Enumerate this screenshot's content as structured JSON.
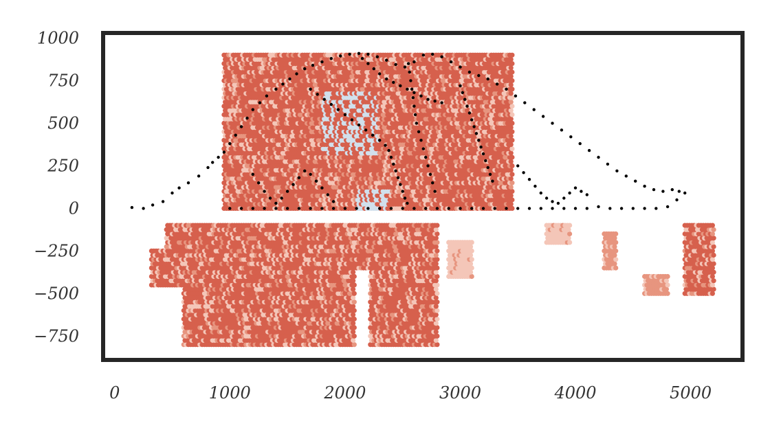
{
  "chart_data": {
    "type": "scatter",
    "title": "",
    "xlabel": "",
    "ylabel": "",
    "xlim": [
      -100,
      5450
    ],
    "ylim": [
      -890,
      1030
    ],
    "x_ticks": [
      0,
      1000,
      2000,
      3000,
      4000,
      5000
    ],
    "y_ticks": [
      -750,
      -500,
      -250,
      0,
      250,
      500,
      750,
      1000
    ],
    "x_tick_labels": [
      "0",
      "1000",
      "2000",
      "3000",
      "4000",
      "5000"
    ],
    "y_tick_labels": [
      "−750",
      "−500",
      "−250",
      "0",
      "250",
      "500",
      "750",
      "1000"
    ],
    "grid": false,
    "colors": {
      "frame": "#262626",
      "tick_text": "#333333",
      "spots_dark": "#d6604d",
      "spots_mid": "#e7957f",
      "spots_light": "#f4c6b8",
      "spots_pale": "#fbe2d9",
      "spots_blue": "#d1e0ec",
      "outline_points": "#000000"
    },
    "series": [
      {
        "kind": "hex-spots",
        "hex_spacing_x": 20,
        "hex_spacing_y": 25,
        "regions": [
          {
            "x_range": [
              950,
              3450
            ],
            "y_range": [
              0,
              900
            ],
            "shade": "dark"
          },
          {
            "x_range": [
              320,
              2800
            ],
            "y_range": [
              -800,
              -100
            ],
            "shade": "dark"
          },
          {
            "x_range": [
              3750,
              3950
            ],
            "y_range": [
              -200,
              -100
            ],
            "shade": "light"
          },
          {
            "x_range": [
              4250,
              4350
            ],
            "y_range": [
              -350,
              -150
            ],
            "shade": "mid"
          },
          {
            "x_range": [
              4600,
              4800
            ],
            "y_range": [
              -500,
              -400
            ],
            "shade": "mid"
          },
          {
            "x_range": [
              4950,
              5200
            ],
            "y_range": [
              -500,
              -100
            ],
            "shade": "dark"
          },
          {
            "x_range": [
              2900,
              3100
            ],
            "y_range": [
              -400,
              -200
            ],
            "shade": "light"
          }
        ]
      },
      {
        "kind": "outline-points",
        "points": [
          [
            150,
            5
          ],
          [
            250,
            0
          ],
          [
            330,
            20
          ],
          [
            420,
            40
          ],
          [
            500,
            90
          ],
          [
            560,
            120
          ],
          [
            640,
            150
          ],
          [
            730,
            190
          ],
          [
            810,
            240
          ],
          [
            850,
            270
          ],
          [
            900,
            300
          ],
          [
            950,
            330
          ],
          [
            1000,
            380
          ],
          [
            1050,
            430
          ],
          [
            1100,
            480
          ],
          [
            1150,
            530
          ],
          [
            1200,
            580
          ],
          [
            1260,
            620
          ],
          [
            1320,
            660
          ],
          [
            1400,
            700
          ],
          [
            1460,
            730
          ],
          [
            1520,
            760
          ],
          [
            1580,
            790
          ],
          [
            1650,
            820
          ],
          [
            1720,
            840
          ],
          [
            1800,
            860
          ],
          [
            1880,
            880
          ],
          [
            1960,
            895
          ],
          [
            2040,
            905
          ],
          [
            2120,
            910
          ],
          [
            2200,
            905
          ],
          [
            2280,
            890
          ],
          [
            2360,
            870
          ],
          [
            2440,
            845
          ],
          [
            2520,
            830
          ],
          [
            2600,
            860
          ],
          [
            2680,
            900
          ],
          [
            2760,
            905
          ],
          [
            2840,
            890
          ],
          [
            2920,
            860
          ],
          [
            3000,
            830
          ],
          [
            3080,
            800
          ],
          [
            3160,
            780
          ],
          [
            3240,
            760
          ],
          [
            3320,
            730
          ],
          [
            3400,
            700
          ],
          [
            3480,
            660
          ],
          [
            3560,
            620
          ],
          [
            3640,
            580
          ],
          [
            3720,
            540
          ],
          [
            3800,
            500
          ],
          [
            3880,
            460
          ],
          [
            3960,
            420
          ],
          [
            4040,
            380
          ],
          [
            4120,
            340
          ],
          [
            4200,
            300
          ],
          [
            4280,
            260
          ],
          [
            4360,
            220
          ],
          [
            4440,
            190
          ],
          [
            4520,
            160
          ],
          [
            4600,
            130
          ],
          [
            4680,
            110
          ],
          [
            4760,
            100
          ],
          [
            4840,
            110
          ],
          [
            4900,
            100
          ],
          [
            4950,
            90
          ],
          [
            4880,
            50
          ],
          [
            4800,
            10
          ],
          [
            4700,
            0
          ],
          [
            4600,
            0
          ],
          [
            4500,
            0
          ],
          [
            4400,
            0
          ],
          [
            4300,
            0
          ],
          [
            4200,
            10
          ],
          [
            4100,
            0
          ],
          [
            4000,
            0
          ],
          [
            3900,
            0
          ],
          [
            3800,
            0
          ],
          [
            3700,
            0
          ],
          [
            3600,
            0
          ],
          [
            3500,
            0
          ],
          [
            3400,
            0
          ],
          [
            3300,
            0
          ],
          [
            3200,
            0
          ],
          [
            3100,
            0
          ],
          [
            3000,
            0
          ],
          [
            2900,
            0
          ],
          [
            2800,
            0
          ],
          [
            2700,
            0
          ],
          [
            2600,
            0
          ],
          [
            2500,
            0
          ],
          [
            2400,
            0
          ],
          [
            2300,
            0
          ],
          [
            2200,
            0
          ],
          [
            2100,
            0
          ],
          [
            2000,
            0
          ],
          [
            1900,
            0
          ],
          [
            1800,
            0
          ],
          [
            1700,
            0
          ],
          [
            1600,
            0
          ],
          [
            1500,
            0
          ],
          [
            1400,
            0
          ],
          [
            1300,
            0
          ],
          [
            1200,
            0
          ],
          [
            1100,
            0
          ],
          [
            1000,
            0
          ],
          [
            2150,
            880
          ],
          [
            2200,
            850
          ],
          [
            2250,
            820
          ],
          [
            2300,
            790
          ],
          [
            2360,
            760
          ],
          [
            2420,
            740
          ],
          [
            2480,
            720
          ],
          [
            2540,
            700
          ],
          [
            2600,
            680
          ],
          [
            2660,
            660
          ],
          [
            2720,
            640
          ],
          [
            2780,
            630
          ],
          [
            2840,
            620
          ],
          [
            1700,
            700
          ],
          [
            1760,
            670
          ],
          [
            1820,
            640
          ],
          [
            1880,
            610
          ],
          [
            1940,
            580
          ],
          [
            2000,
            550
          ],
          [
            2060,
            520
          ],
          [
            2120,
            490
          ],
          [
            2180,
            460
          ],
          [
            2240,
            430
          ],
          [
            2300,
            400
          ],
          [
            2350,
            370
          ],
          [
            2380,
            340
          ],
          [
            2400,
            300
          ],
          [
            2420,
            260
          ],
          [
            2440,
            220
          ],
          [
            2460,
            180
          ],
          [
            2480,
            140
          ],
          [
            2500,
            100
          ],
          [
            2520,
            60
          ],
          [
            2540,
            30
          ],
          [
            2550,
            850
          ],
          [
            2560,
            800
          ],
          [
            2570,
            750
          ],
          [
            2580,
            700
          ],
          [
            2590,
            650
          ],
          [
            2600,
            600
          ],
          [
            2610,
            550
          ],
          [
            2620,
            500
          ],
          [
            2640,
            450
          ],
          [
            2660,
            400
          ],
          [
            2680,
            350
          ],
          [
            2700,
            300
          ],
          [
            2720,
            250
          ],
          [
            2740,
            200
          ],
          [
            2760,
            150
          ],
          [
            2780,
            100
          ],
          [
            3000,
            720
          ],
          [
            3020,
            680
          ],
          [
            3040,
            640
          ],
          [
            3060,
            600
          ],
          [
            3080,
            560
          ],
          [
            3100,
            520
          ],
          [
            3120,
            480
          ],
          [
            3140,
            440
          ],
          [
            3160,
            400
          ],
          [
            3180,
            360
          ],
          [
            3200,
            320
          ],
          [
            3220,
            280
          ],
          [
            3240,
            240
          ],
          [
            3260,
            200
          ],
          [
            3280,
            160
          ],
          [
            1200,
            200
          ],
          [
            1250,
            150
          ],
          [
            1300,
            100
          ],
          [
            1350,
            60
          ],
          [
            1400,
            30
          ],
          [
            1450,
            60
          ],
          [
            1500,
            100
          ],
          [
            1550,
            140
          ],
          [
            1600,
            180
          ],
          [
            1650,
            220
          ],
          [
            1700,
            200
          ],
          [
            1750,
            160
          ],
          [
            1800,
            120
          ],
          [
            1850,
            80
          ],
          [
            1900,
            40
          ],
          [
            3500,
            250
          ],
          [
            3550,
            210
          ],
          [
            3600,
            170
          ],
          [
            3650,
            130
          ],
          [
            3700,
            90
          ],
          [
            3750,
            60
          ],
          [
            3800,
            40
          ],
          [
            3850,
            30
          ],
          [
            3900,
            60
          ],
          [
            3950,
            90
          ],
          [
            4000,
            120
          ],
          [
            4050,
            100
          ],
          [
            4100,
            80
          ]
        ]
      }
    ]
  }
}
